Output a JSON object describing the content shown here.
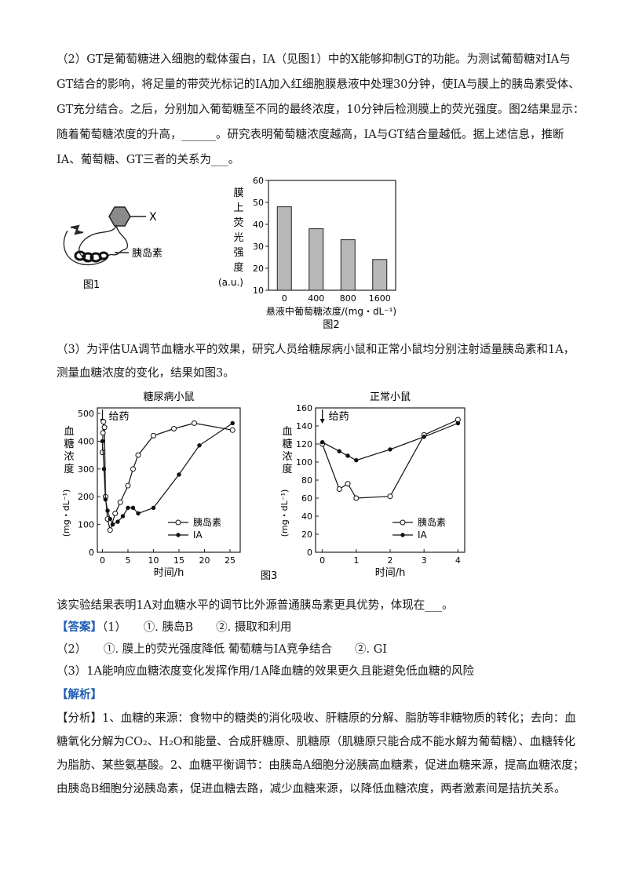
{
  "q2": {
    "line1": "（2）GT是葡萄糖进入细胞的载体蛋白，IA（见图1）中的X能够抑制GT的功能。为测试葡萄糖对IA与",
    "line2": "GT结合的影响，将足量的带荧光标记的IA加入红细胞膜悬液中处理30分钟，使IA与膜上的胰岛素受体、",
    "line3": "GT充分结合。之后，分别加入葡萄糖至不同的最终浓度，10分钟后检测膜上的荧光强度。图2结果显示：",
    "line4": "随着葡萄糖浓度的升高，______。研究表明葡萄糖浓度越高，IA与GT结合量越低。据上述信息，推断",
    "line5": "IA、葡萄糖、GT三者的关系为___。"
  },
  "fig1": {
    "label_x": "X",
    "label_insulin": "胰岛素",
    "caption": "图1"
  },
  "fig2": {
    "caption": "图2",
    "ylabel_chars": [
      "膜",
      "上",
      "荧",
      "光",
      "强",
      "度"
    ],
    "ylabel_unit": "(a.u.)",
    "xlabel": "悬液中葡萄糖浓度/(mg・dL⁻¹)",
    "chart_data": {
      "type": "bar",
      "categories": [
        "0",
        "400",
        "800",
        "1600"
      ],
      "values": [
        48,
        38,
        33,
        24
      ],
      "ylim": [
        10,
        60
      ],
      "yticks": [
        10,
        20,
        30,
        40,
        50,
        60
      ]
    }
  },
  "q3": {
    "line1": "（3）为评估UA调节血糖水平的效果，研究人员给糖尿病小鼠和正常小鼠均分别注射适量胰岛素和1A，",
    "line2": "测量血糖浓度的变化，结果如图3。"
  },
  "fig3": {
    "caption": "图3",
    "left": {
      "title": "糖尿病小鼠",
      "annotation": "给药",
      "ylabel_main": "血糖浓度",
      "ylabel_unit": "(mg・dL⁻¹)",
      "xlabel": "时间/h",
      "legend": [
        "胰岛素",
        "IA"
      ],
      "chart_data": {
        "type": "line",
        "xlim": [
          -1,
          27
        ],
        "ylim": [
          0,
          520
        ],
        "xticks": [
          0,
          5,
          10,
          15,
          20,
          25
        ],
        "yticks": [
          0,
          100,
          200,
          300,
          400,
          500
        ],
        "series": [
          {
            "name": "胰岛素",
            "marker": "open",
            "points": [
              [
                0,
                360
              ],
              [
                0.1,
                430
              ],
              [
                0.2,
                470
              ],
              [
                0.4,
                450
              ],
              [
                0.6,
                200
              ],
              [
                1,
                120
              ],
              [
                1.5,
                80
              ],
              [
                2.5,
                140
              ],
              [
                3.5,
                180
              ],
              [
                5,
                240
              ],
              [
                6,
                300
              ],
              [
                7,
                350
              ],
              [
                10,
                420
              ],
              [
                14,
                445
              ],
              [
                18,
                465
              ],
              [
                25.5,
                440
              ]
            ]
          },
          {
            "name": "IA",
            "marker": "filled",
            "points": [
              [
                0,
                400
              ],
              [
                0.3,
                300
              ],
              [
                0.6,
                190
              ],
              [
                1,
                150
              ],
              [
                1.5,
                120
              ],
              [
                2,
                100
              ],
              [
                3,
                110
              ],
              [
                4,
                130
              ],
              [
                5,
                160
              ],
              [
                6,
                160
              ],
              [
                7,
                140
              ],
              [
                10,
                160
              ],
              [
                15,
                280
              ],
              [
                19,
                385
              ],
              [
                25.5,
                465
              ]
            ]
          }
        ]
      }
    },
    "right": {
      "title": "正常小鼠",
      "annotation": "给药",
      "ylabel_main": "血糖浓度",
      "ylabel_unit": "(mg・dL⁻¹)",
      "xlabel": "时间/h",
      "legend": [
        "胰岛素",
        "IA"
      ],
      "chart_data": {
        "type": "line",
        "xlim": [
          -0.2,
          4.2
        ],
        "ylim": [
          0,
          160
        ],
        "xticks": [
          0,
          1,
          2,
          3,
          4
        ],
        "yticks": [
          0,
          20,
          40,
          60,
          80,
          100,
          120,
          140,
          160
        ],
        "series": [
          {
            "name": "胰岛素",
            "marker": "open",
            "points": [
              [
                0,
                120
              ],
              [
                0.5,
                70
              ],
              [
                0.75,
                76
              ],
              [
                1,
                60
              ],
              [
                2,
                62
              ],
              [
                3,
                130
              ],
              [
                4,
                147
              ]
            ]
          },
          {
            "name": "IA",
            "marker": "filled",
            "points": [
              [
                0,
                122
              ],
              [
                0.5,
                112
              ],
              [
                0.75,
                107
              ],
              [
                1,
                102
              ],
              [
                2,
                114
              ],
              [
                3,
                128
              ],
              [
                4,
                143
              ]
            ]
          }
        ]
      }
    }
  },
  "q3_tail": "该实验结果表明1A对血糖水平的调节比外源普通胰岛素更具优势，体现在___。",
  "answer": {
    "tag": "【答案】",
    "l1": "（1）　　①. 胰岛B　　②. 摄取和利用",
    "l2": "（2）　　①. 膜上的荧光强度降低  葡萄糖与IA竞争结合　　②. GI",
    "l3": "（3）1A能响应血糖浓度变化发挥作用/1A降血糖的效果更久且能避免低血糖的风险"
  },
  "analysis": {
    "tag": "【解析】",
    "l1": "【分析】1、血糖的来源：食物中的糖类的消化吸收、肝糖原的分解、脂肪等非糖物质的转化；去向：血",
    "l2": "糖氧化分解为CO₂、H₂O和能量、合成肝糖原、肌糖原（肌糖原只能合成不能水解为葡萄糖）、血糖转化",
    "l3": "为脂肪、某些氨基酸。2、血糖平衡调节：由胰岛A细胞分泌胰高血糖素，促进血糖来源，提高血糖浓度；",
    "l4": "由胰岛B细胞分泌胰岛素，促进血糖去路，减少血糖来源，以降低血糖浓度，两者激素间是拮抗关系。"
  },
  "colors": {
    "answer_tag": "#1f5fb4",
    "bar_fill": "#b8b8b8",
    "hexagon_fill": "#8a8a8a"
  }
}
